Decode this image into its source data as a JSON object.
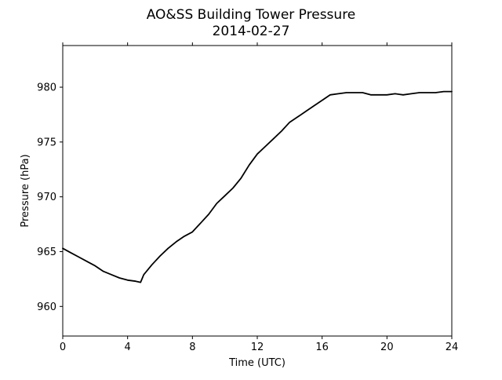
{
  "chart_data": {
    "type": "line",
    "title": "AO&SS Building Tower Pressure",
    "subtitle": "2014-02-27",
    "xlabel": "Time (UTC)",
    "ylabel": "Pressure (hPa)",
    "xlim": [
      0,
      24
    ],
    "ylim": [
      957.3,
      983.8
    ],
    "xticks": [
      0,
      4,
      8,
      12,
      16,
      20,
      24
    ],
    "yticks": [
      960,
      965,
      970,
      975,
      980
    ],
    "grid": false,
    "legend": "none",
    "series": [
      {
        "color": "#000000",
        "x": [
          0,
          0.5,
          1,
          1.5,
          2,
          2.5,
          3,
          3.5,
          4,
          4.5,
          4.8,
          5,
          5.5,
          6,
          6.5,
          7,
          7.5,
          8,
          8.5,
          9,
          9.5,
          10,
          10.5,
          11,
          11.5,
          12,
          12.5,
          13,
          13.5,
          14,
          14.5,
          15,
          15.5,
          16,
          16.5,
          17,
          17.5,
          18,
          18.5,
          19,
          19.5,
          20,
          20.5,
          21,
          21.5,
          22,
          22.5,
          23,
          23.5,
          24
        ],
        "y": [
          965.3,
          964.9,
          964.5,
          964.1,
          963.7,
          963.2,
          962.9,
          962.6,
          962.4,
          962.3,
          962.2,
          962.9,
          963.8,
          964.6,
          965.3,
          965.9,
          966.4,
          966.8,
          967.6,
          968.4,
          969.4,
          970.1,
          970.8,
          971.7,
          972.9,
          973.9,
          974.6,
          975.3,
          976.0,
          976.8,
          977.3,
          977.8,
          978.3,
          978.8,
          979.3,
          979.4,
          979.5,
          979.5,
          979.5,
          979.3,
          979.3,
          979.3,
          979.4,
          979.3,
          979.4,
          979.5,
          979.5,
          979.5,
          979.6,
          979.6
        ]
      }
    ]
  }
}
